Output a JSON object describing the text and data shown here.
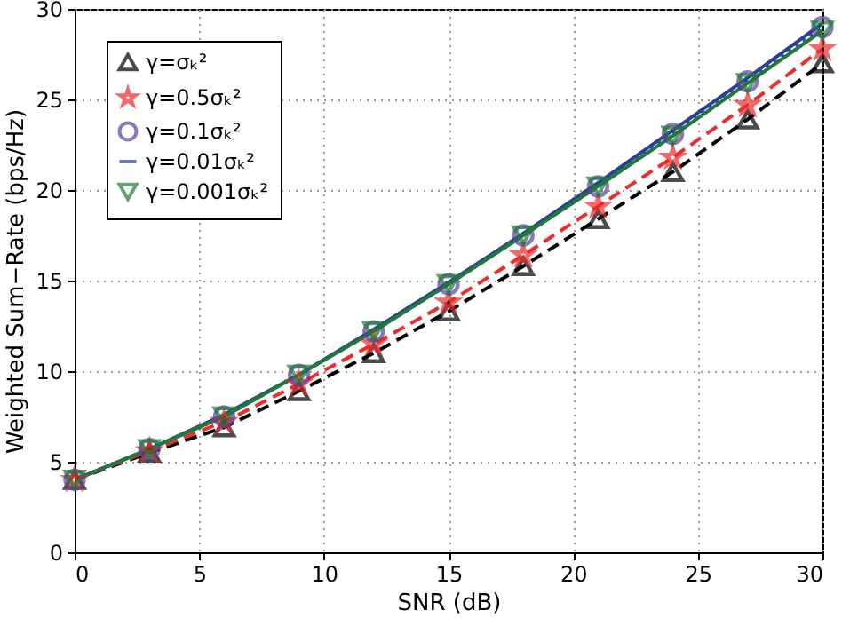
{
  "chart_data": {
    "type": "line",
    "xlabel": "SNR (dB)",
    "ylabel": "Weighted Sum−Rate (bps/Hz)",
    "x": [
      0,
      3,
      6,
      9,
      12,
      15,
      18,
      21,
      24,
      27,
      30
    ],
    "xlim": [
      0,
      30
    ],
    "xticks": [
      0,
      5,
      10,
      15,
      20,
      25,
      30
    ],
    "ylim": [
      0,
      30
    ],
    "yticks": [
      0,
      5,
      10,
      15,
      20,
      25,
      30
    ],
    "grid": true,
    "legend": "top left",
    "series": [
      {
        "name": "γ=σₖ²",
        "color": "#000000",
        "line_style": "dashed",
        "marker": "triangle",
        "values": [
          4.0,
          5.5,
          6.9,
          8.9,
          11.0,
          13.3,
          15.8,
          18.4,
          21.0,
          23.9,
          27.0
        ]
      },
      {
        "name": "γ=0.5σₖ²",
        "color": "#ee2a2a",
        "line_style": "dashed",
        "marker": "star",
        "values": [
          4.0,
          5.6,
          7.2,
          9.3,
          11.5,
          13.8,
          16.4,
          19.1,
          21.8,
          24.7,
          27.8
        ]
      },
      {
        "name": "γ=0.1σₖ²",
        "color": "#5b3fa0",
        "line_style": "dotted",
        "marker": "circle",
        "values": [
          4.0,
          5.7,
          7.5,
          9.8,
          12.2,
          14.8,
          17.5,
          20.2,
          23.1,
          26.0,
          29.0
        ]
      },
      {
        "name": "γ=0.01σₖ²",
        "color": "#2a3f9a",
        "line_style": "solid",
        "marker": "none",
        "values": [
          4.0,
          5.7,
          7.6,
          9.8,
          12.3,
          14.9,
          17.6,
          20.4,
          23.3,
          26.2,
          29.2
        ]
      },
      {
        "name": "γ=0.001σₖ²",
        "color": "#1f7a3a",
        "line_style": "solid",
        "marker": "triangle-down",
        "values": [
          4.0,
          5.7,
          7.5,
          9.8,
          12.2,
          14.8,
          17.5,
          20.2,
          23.0,
          25.9,
          28.8
        ]
      }
    ]
  }
}
